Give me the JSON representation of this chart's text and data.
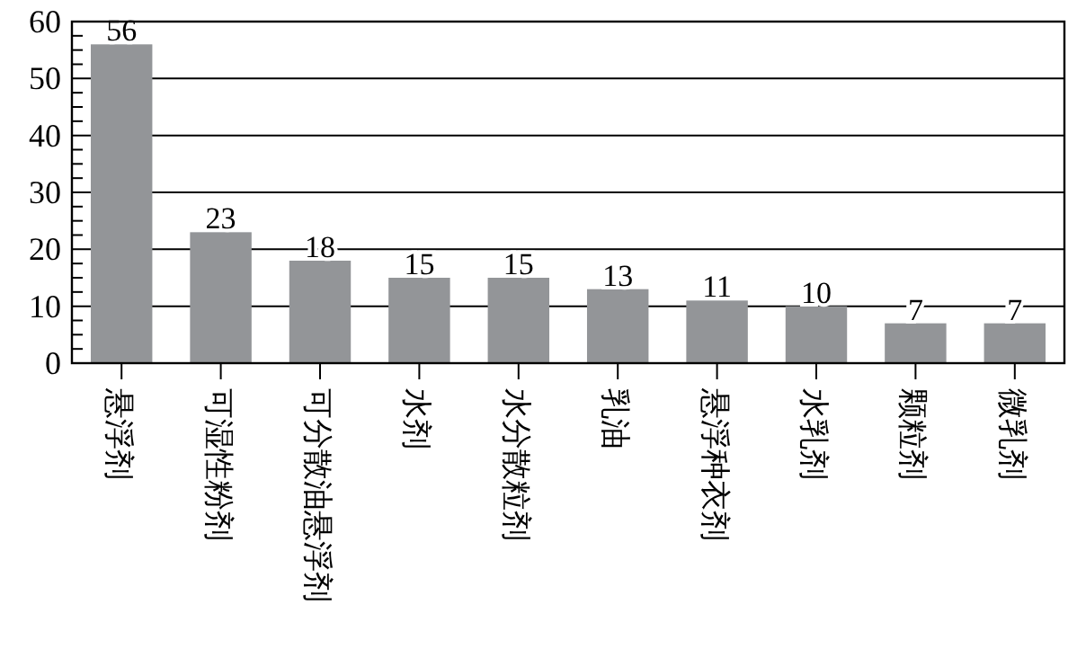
{
  "chart_data": {
    "type": "bar",
    "categories": [
      "悬浮剂",
      "可湿性粉剂",
      "可分散油悬浮剂",
      "水剂",
      "水分散粒剂",
      "乳油",
      "悬浮种衣剂",
      "水乳剂",
      "颗粒剂",
      "微乳剂"
    ],
    "values": [
      56,
      23,
      18,
      15,
      15,
      13,
      11,
      10,
      7,
      7
    ],
    "color": "#939598",
    "ylim": [
      0,
      60
    ],
    "yticks": [
      0,
      {
        "value": 2.5,
        "label": null
      },
      {
        "value": 5,
        "label": null
      },
      {
        "value": 7.5,
        "label": null
      },
      10,
      {
        "value": 12.5,
        "label": null
      },
      {
        "value": 15,
        "label": null
      },
      {
        "value": 17.5,
        "label": null
      },
      20,
      {
        "value": 22.5,
        "label": null
      },
      {
        "value": 25,
        "label": null
      },
      {
        "value": 27.5,
        "label": null
      },
      30,
      {
        "value": 32.5,
        "label": null
      },
      {
        "value": 35,
        "label": null
      },
      {
        "value": 37.5,
        "label": null
      },
      40,
      {
        "value": 42.5,
        "label": null
      },
      {
        "value": 45,
        "label": null
      },
      {
        "value": 47.5,
        "label": null
      },
      50,
      {
        "value": 52.5,
        "label": null
      },
      {
        "value": 55,
        "label": null
      },
      {
        "value": 57.5,
        "label": null
      },
      60
    ],
    "grid": "y",
    "data_labels": true
  }
}
